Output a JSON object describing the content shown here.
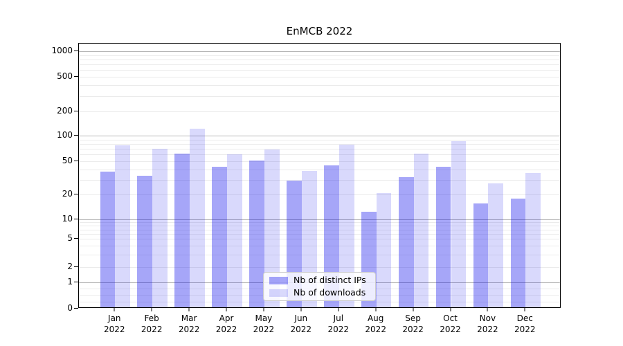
{
  "chart_data": {
    "type": "bar",
    "title": "EnMCB 2022",
    "categories": [
      "Jan 2022",
      "Feb 2022",
      "Mar 2022",
      "Apr 2022",
      "May 2022",
      "Jun 2022",
      "Jul 2022",
      "Aug 2022",
      "Sep 2022",
      "Oct 2022",
      "Nov 2022",
      "Dec 2022"
    ],
    "series": [
      {
        "name": "Nb of distinct IPs",
        "color": "rgba(0, 0, 235, 0.35)",
        "values": [
          36,
          32,
          59,
          41,
          49,
          28,
          43,
          12,
          31,
          41,
          15,
          17
        ]
      },
      {
        "name": "Nb of downloads",
        "color": "rgba(0, 0, 235, 0.15)",
        "values": [
          74,
          68,
          118,
          58,
          66,
          37,
          76,
          20,
          59,
          83,
          26,
          35
        ]
      }
    ],
    "xlabel": "",
    "ylabel": "",
    "yscale": "symlog",
    "y_ticks": [
      0,
      1,
      2,
      5,
      10,
      20,
      50,
      100,
      200,
      500,
      1000
    ],
    "ylim": [
      0,
      1230
    ],
    "grid": true,
    "legend_position": "lower center"
  }
}
